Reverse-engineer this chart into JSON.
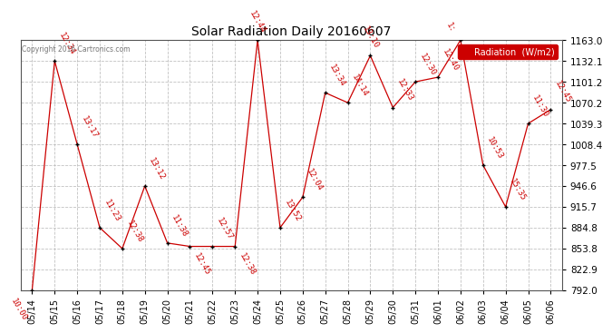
{
  "title": "Solar Radiation Daily 20160607",
  "copyright": "Copyright 2016 Cartronics.com",
  "legend_label": "Radiation  (W/m2)",
  "ylim": [
    792.0,
    1163.0
  ],
  "yticks": [
    792.0,
    822.9,
    853.8,
    884.8,
    915.7,
    946.6,
    977.5,
    1008.4,
    1039.3,
    1070.2,
    1101.2,
    1132.1,
    1163.0
  ],
  "dates": [
    "05/14",
    "05/15",
    "05/16",
    "05/17",
    "05/18",
    "05/19",
    "05/20",
    "05/21",
    "05/22",
    "05/23",
    "05/24",
    "05/25",
    "05/26",
    "05/27",
    "05/28",
    "05/29",
    "05/30",
    "05/31",
    "06/01",
    "06/02",
    "06/03",
    "06/04",
    "06/05",
    "06/06"
  ],
  "values": [
    792.0,
    1132.1,
    1008.4,
    884.8,
    853.8,
    946.6,
    862.0,
    857.0,
    857.0,
    857.0,
    1163.0,
    884.8,
    930.0,
    1085.0,
    1070.2,
    1140.0,
    1063.0,
    1101.2,
    1108.0,
    1163.0,
    977.5,
    915.7,
    1039.3,
    1060.0
  ],
  "time_labels": [
    "10:00",
    "12:34",
    "13:17",
    "11:23",
    "12:38",
    "13:12",
    "11:38",
    "12:45",
    "12:57",
    "12:38",
    "12:44",
    "13:52",
    "12:04",
    "13:34",
    "14:14",
    "13:10",
    "12:33",
    "12:30",
    "12:40",
    "1:",
    "10:53",
    "15:35",
    "11:30",
    "12:45"
  ],
  "line_color": "#cc0000",
  "marker_color": "#000000",
  "bg_color": "#ffffff",
  "grid_color": "#aaaaaa",
  "title_color": "#000000",
  "label_color": "#cc0000",
  "figwidth": 6.9,
  "figheight": 3.75,
  "dpi": 100
}
